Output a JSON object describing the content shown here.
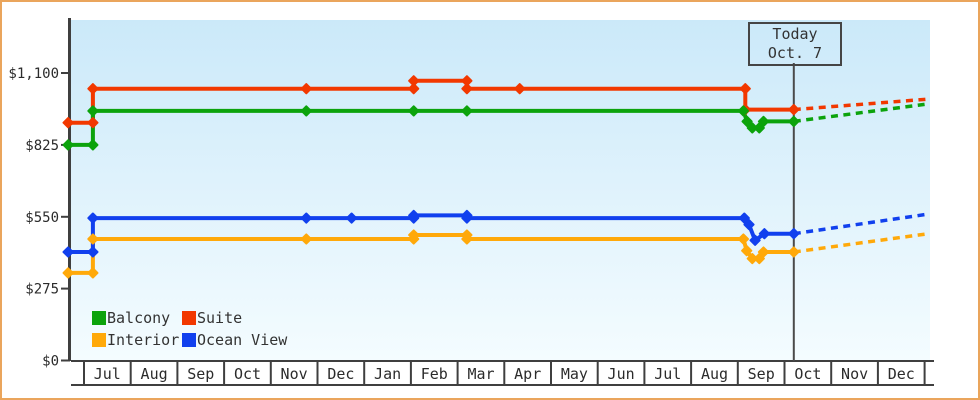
{
  "window": {
    "border_color": "#eaa55c"
  },
  "today_box": {
    "line1": "Today",
    "line2": "Oct. 7"
  },
  "legend": {
    "items": [
      {
        "label": "Balcony",
        "color": "#0ca30c"
      },
      {
        "label": "Suite",
        "color": "#f23800"
      },
      {
        "label": "Interior",
        "color": "#ffa90a"
      },
      {
        "label": "Ocean View",
        "color": "#1140ee"
      }
    ]
  },
  "chart_data": {
    "type": "line",
    "title": "",
    "description": "Cruise cabin price history by category with dashed forecast after today marker",
    "grid": false,
    "legend_position": "bottom-left",
    "y_axis": {
      "tick_values": [
        0,
        275,
        550,
        825,
        1100
      ],
      "tick_labels": [
        "$0",
        "$275",
        "$550",
        "$825",
        "$1,100"
      ],
      "ylim": [
        0,
        1320
      ]
    },
    "x_axis": {
      "month_labels": [
        "Jul",
        "Aug",
        "Sep",
        "Oct",
        "Nov",
        "Dec",
        "Jan",
        "Feb",
        "Mar",
        "Apr",
        "May",
        "Jun",
        "Jul",
        "Aug",
        "Sep",
        "Oct",
        "Nov",
        "Dec"
      ]
    },
    "today": {
      "label": "Today",
      "date": "Oct. 7",
      "month_position": 15.2
    },
    "series": [
      {
        "name": "Suite",
        "color": "#f23800",
        "points": [
          [
            -0.34,
            910
          ],
          [
            0.19,
            910
          ],
          [
            0.19,
            1040
          ],
          [
            4.76,
            1040
          ],
          [
            7.06,
            1040
          ],
          [
            7.06,
            1070
          ],
          [
            8.2,
            1070
          ],
          [
            8.2,
            1040
          ],
          [
            9.33,
            1040
          ],
          [
            14.16,
            1040
          ],
          [
            14.16,
            960
          ],
          [
            15.2,
            960
          ]
        ],
        "forecast_end": [
          18.08,
          1000
        ]
      },
      {
        "name": "Balcony",
        "color": "#0ca30c",
        "points": [
          [
            -0.34,
            825
          ],
          [
            0.19,
            825
          ],
          [
            0.19,
            955
          ],
          [
            4.76,
            955
          ],
          [
            7.06,
            955
          ],
          [
            8.2,
            955
          ],
          [
            14.12,
            955
          ],
          [
            14.2,
            915
          ],
          [
            14.31,
            890
          ],
          [
            14.46,
            890
          ],
          [
            14.55,
            915
          ],
          [
            15.2,
            915
          ]
        ],
        "forecast_end": [
          18.0,
          980
        ]
      },
      {
        "name": "Interior",
        "color": "#ffa90a",
        "points": [
          [
            -0.34,
            335
          ],
          [
            0.19,
            335
          ],
          [
            0.19,
            465
          ],
          [
            4.76,
            465
          ],
          [
            7.06,
            465
          ],
          [
            7.06,
            480
          ],
          [
            8.2,
            480
          ],
          [
            8.2,
            465
          ],
          [
            14.12,
            465
          ],
          [
            14.19,
            420
          ],
          [
            14.31,
            390
          ],
          [
            14.46,
            390
          ],
          [
            14.55,
            415
          ],
          [
            15.2,
            415
          ]
        ],
        "forecast_end": [
          18.08,
          485
        ]
      },
      {
        "name": "Ocean View",
        "color": "#1140ee",
        "points": [
          [
            -0.34,
            415
          ],
          [
            0.19,
            415
          ],
          [
            0.19,
            545
          ],
          [
            4.76,
            545
          ],
          [
            5.73,
            545
          ],
          [
            7.06,
            545
          ],
          [
            7.06,
            555
          ],
          [
            8.2,
            555
          ],
          [
            8.2,
            545
          ],
          [
            14.14,
            545
          ],
          [
            14.24,
            520
          ],
          [
            14.37,
            460
          ],
          [
            14.57,
            485
          ],
          [
            15.2,
            485
          ]
        ],
        "forecast_end": [
          18.08,
          560
        ]
      }
    ]
  }
}
